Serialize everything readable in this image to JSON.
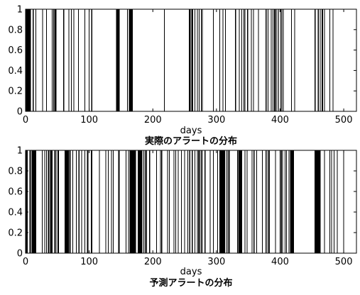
{
  "chart_data": [
    {
      "type": "event-raster",
      "title": "",
      "xlabel": "days",
      "caption": "実際のアラートの分布",
      "ylabel": "",
      "xlim": [
        0,
        520
      ],
      "ylim": [
        0,
        1
      ],
      "xticks": [
        0,
        100,
        200,
        300,
        400,
        500
      ],
      "yticks": [
        0,
        0.2,
        0.4,
        0.6,
        0.8,
        1
      ],
      "grid": false,
      "legend": "none",
      "series": [
        {
          "values": [
            1,
            2,
            3,
            4,
            5,
            6,
            7,
            8,
            12,
            16,
            27,
            33,
            42,
            44,
            46,
            47,
            48,
            60,
            68,
            72,
            76,
            83,
            93,
            100,
            104,
            143,
            144,
            145,
            146,
            147,
            160,
            163,
            164,
            165,
            166,
            167,
            168,
            218,
            257,
            258,
            260,
            262,
            263,
            266,
            270,
            273,
            276,
            278,
            295,
            305,
            310,
            314,
            330,
            336,
            340,
            343,
            345,
            349,
            355,
            358,
            366,
            378,
            381,
            386,
            389,
            391,
            392,
            393,
            395,
            398,
            401,
            403,
            405,
            418,
            423,
            455,
            460,
            463,
            466,
            467,
            470,
            478,
            483
          ]
        }
      ]
    },
    {
      "type": "event-raster",
      "title": "",
      "xlabel": "days",
      "caption": "予測アラートの分布",
      "ylabel": "",
      "xlim": [
        0,
        520
      ],
      "ylim": [
        0,
        1
      ],
      "xticks": [
        0,
        100,
        200,
        300,
        400,
        500
      ],
      "yticks": [
        0,
        0.2,
        0.4,
        0.6,
        0.8,
        1
      ],
      "grid": false,
      "legend": "none",
      "series": [
        {
          "values": [
            1,
            2,
            3,
            7,
            8,
            10,
            11,
            12,
            13,
            14,
            15,
            16,
            26,
            30,
            33,
            36,
            37,
            39,
            40,
            41,
            42,
            46,
            48,
            51,
            52,
            62,
            63,
            64,
            65,
            66,
            67,
            68,
            70,
            74,
            80,
            84,
            88,
            93,
            97,
            98,
            103,
            104,
            116,
            126,
            130,
            135,
            138,
            146,
            147,
            158,
            162,
            164,
            165,
            166,
            167,
            168,
            169,
            170,
            171,
            172,
            173,
            177,
            178,
            179,
            180,
            181,
            182,
            183,
            186,
            188,
            190,
            195,
            206,
            212,
            214,
            223,
            226,
            233,
            236,
            240,
            245,
            250,
            255,
            258,
            262,
            266,
            270,
            272,
            274,
            276,
            278,
            282,
            290,
            295,
            302,
            305,
            306,
            307,
            308,
            309,
            310,
            311,
            312,
            313,
            316,
            318,
            320,
            333,
            335,
            336,
            337,
            338,
            339,
            340,
            345,
            348,
            356,
            359,
            363,
            372,
            378,
            381,
            383,
            393,
            400,
            402,
            404,
            408,
            410,
            414,
            416,
            417,
            418,
            419,
            420,
            421,
            455,
            456,
            457,
            458,
            459,
            460,
            461,
            462,
            463,
            470,
            478,
            481,
            485,
            490,
            500
          ]
        }
      ]
    }
  ]
}
